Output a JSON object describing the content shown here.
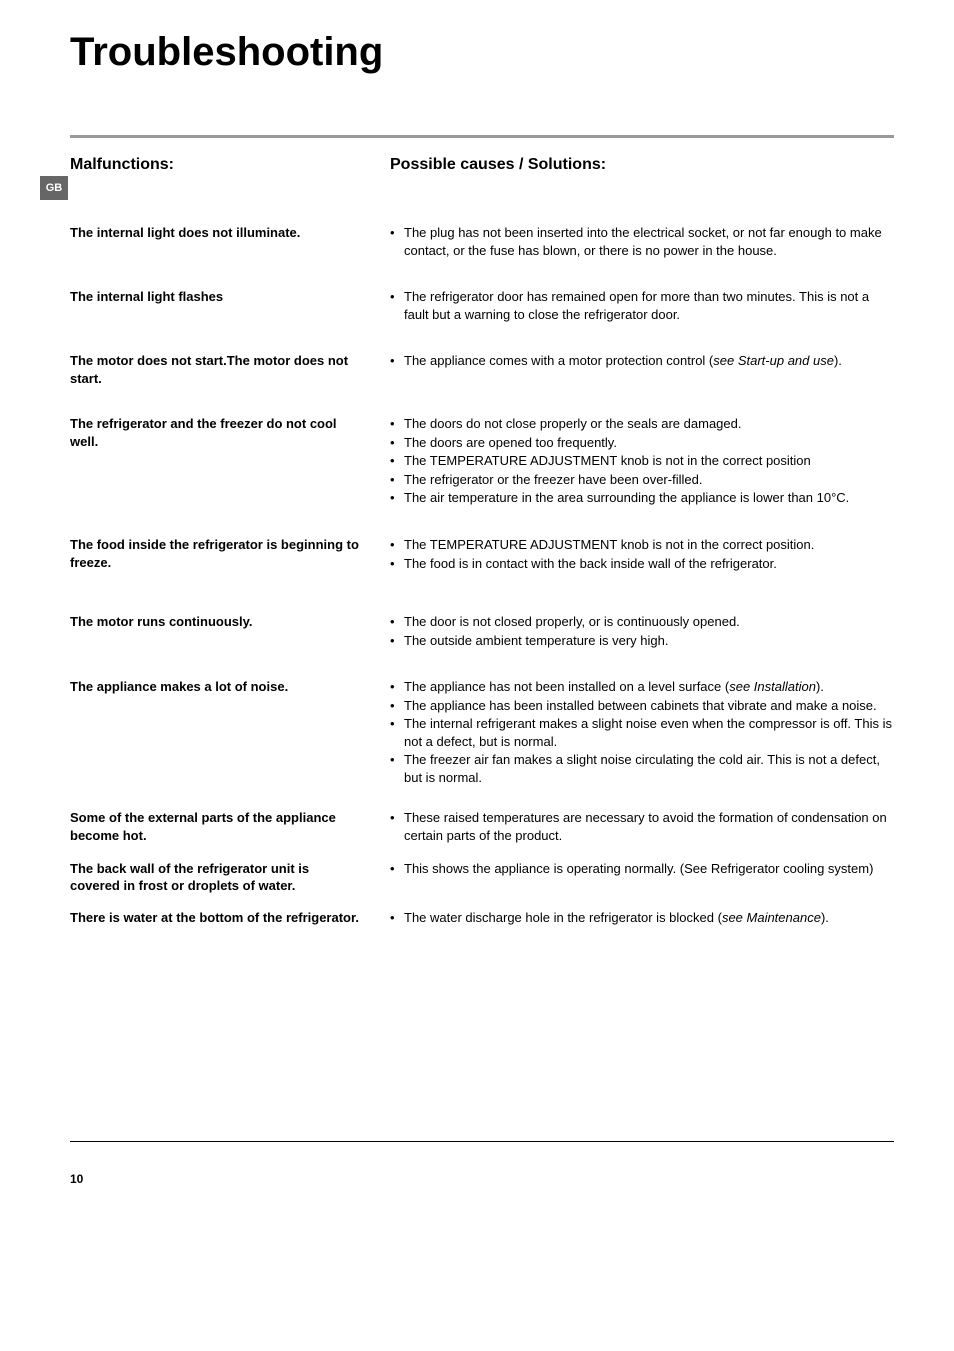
{
  "title": "Troubleshooting",
  "langTab": "GB",
  "pageNumber": "10",
  "headings": {
    "left": "Malfunctions:",
    "right": "Possible causes / Solutions:"
  },
  "rows": [
    {
      "malfunction": "The internal light does not illuminate.",
      "causes": [
        "The plug has not been inserted into the electrical socket, or not far enough to make contact, or the fuse has blown, or there is no power in the house."
      ],
      "spacing": 28
    },
    {
      "malfunction": "The internal light flashes",
      "causes": [
        "The refrigerator door has remained open for more than two minutes. This is not a fault but a warning to close the refrigerator door."
      ],
      "spacing": 28
    },
    {
      "malfunction": "The motor does not start.The motor does not start.",
      "causes": [
        "The appliance comes with a motor protection control (<span class=\"italic\">see Start-up and use</span>)."
      ],
      "spacing": 28
    },
    {
      "malfunction": "The refrigerator and the freezer do not cool well.",
      "causes": [
        "The doors do not close properly or the seals are damaged.",
        "The doors are opened too frequently.",
        "The TEMPERATURE ADJUSTMENT knob is not in the correct position",
        "The refrigerator or the freezer have been over-filled.",
        "The air temperature in the area surrounding the appliance is lower than 10°C."
      ],
      "spacing": 28
    },
    {
      "malfunction": "The food inside the refrigerator is beginning to freeze.",
      "causes": [
        "The TEMPERATURE ADJUSTMENT knob is not in the correct position.",
        "The food is in contact with the back inside wall of the refrigerator."
      ],
      "spacing": 40
    },
    {
      "malfunction": "The motor runs continuously.",
      "causes": [
        "The door is not closed properly, or is continuously opened.",
        "The outside ambient temperature is very high."
      ],
      "spacing": 28
    },
    {
      "malfunction": "The appliance makes a lot of noise.",
      "causes": [
        "The appliance has not been installed on a level surface (<span class=\"italic\">see Installation</span>).",
        "The appliance has been installed between cabinets that vibrate and make a noise.",
        "The internal refrigerant makes a slight noise even when the compressor is off. This is not a defect, but is normal.",
        "The freezer air fan makes a slight noise circulating the cold air. This is not a defect, but is normal."
      ],
      "spacing": 22
    },
    {
      "malfunction": "Some of the external parts of the appliance become hot.",
      "causes": [
        "These raised temperatures are necessary to avoid the formation of condensation on certain parts of the product."
      ],
      "spacing": 14
    },
    {
      "malfunction": "The back wall of the refrigerator unit is covered in frost or droplets of water.",
      "causes": [
        "This shows the appliance is operating normally. (See Refrigerator cooling system)"
      ],
      "spacing": 14
    },
    {
      "malfunction": "There is water at the bottom of the refrigerator.",
      "causes": [
        "The water discharge hole in the refrigerator is blocked (<span class=\"italic\">see Maintenance</span>)."
      ],
      "spacing": 14
    }
  ]
}
